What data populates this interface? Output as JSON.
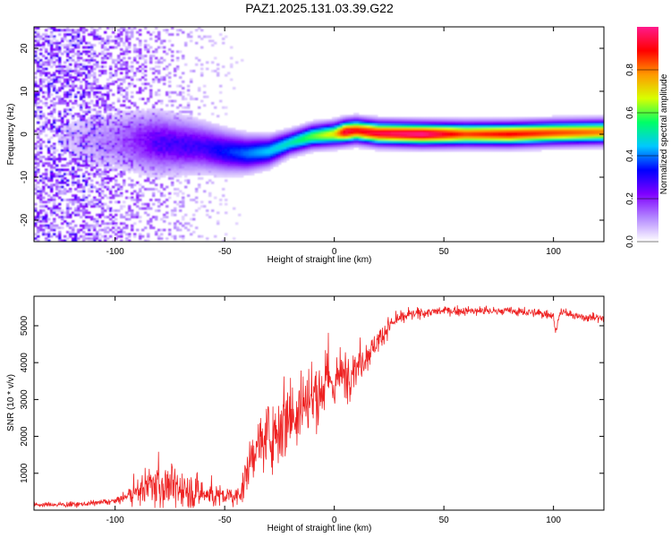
{
  "title": "PAZ1.2025.131.03.39.G22",
  "chart_data": [
    {
      "type": "heatmap",
      "title": "PAZ1.2025.131.03.39.G22",
      "xlabel": "Height of straight line (km)",
      "ylabel": "Frequency (Hz)",
      "xlim": [
        -137,
        123
      ],
      "ylim": [
        -25,
        25
      ],
      "xticks": [
        -100,
        -50,
        0,
        50,
        100
      ],
      "yticks": [
        -20,
        -10,
        0,
        10,
        20
      ],
      "colorbar": {
        "label": "Normalized spectral amplitude",
        "range": [
          0,
          1
        ],
        "ticks": [
          "0.0",
          "0.2",
          "0.4",
          "0.6",
          "0.8"
        ],
        "colors": [
          "#ffffff",
          "#b388ff",
          "#7f00ff",
          "#0000ff",
          "#00c8ff",
          "#00ff66",
          "#d8ff00",
          "#ff9900",
          "#ff0000",
          "#ff1a8c"
        ]
      },
      "ridge": {
        "x": [
          -137,
          -100,
          -80,
          -60,
          -50,
          -40,
          -30,
          -20,
          -10,
          0,
          5,
          10,
          20,
          40,
          60,
          80,
          100,
          123
        ],
        "freq": [
          -1.0,
          -1.5,
          -2.0,
          -3.0,
          -4.0,
          -4.5,
          -4.0,
          -2.0,
          -0.5,
          0.0,
          0.5,
          0.8,
          0.2,
          0.0,
          0.0,
          0.0,
          0.3,
          0.5
        ],
        "peak_amplitude": [
          0.0,
          0.15,
          0.3,
          0.3,
          0.35,
          0.4,
          0.45,
          0.5,
          0.6,
          0.7,
          0.95,
          0.9,
          0.95,
          1.0,
          0.85,
          0.9,
          0.85,
          0.8
        ]
      }
    },
    {
      "type": "line",
      "xlabel": "Height of straight line (km)",
      "ylabel": "SNR (10 * v/v)",
      "xlim": [
        -137,
        123
      ],
      "ylim": [
        0,
        5800
      ],
      "xticks": [
        -100,
        -50,
        0,
        50,
        100
      ],
      "yticks": [
        1000,
        2000,
        3000,
        4000,
        5000
      ],
      "color": "#ee2222",
      "series": [
        {
          "x": [
            -137,
            -120,
            -110,
            -100,
            -95,
            -90,
            -85,
            -80,
            -75,
            -70,
            -65,
            -60,
            -55,
            -50,
            -45,
            -42,
            -40,
            -38,
            -35,
            -30,
            -25,
            -20,
            -15,
            -10,
            -5,
            0,
            5,
            10,
            15,
            20,
            25,
            30,
            35,
            40,
            50,
            60,
            70,
            80,
            90,
            100,
            101,
            103,
            110,
            123
          ],
          "y": [
            150,
            150,
            180,
            250,
            350,
            500,
            650,
            700,
            650,
            550,
            500,
            450,
            400,
            380,
            350,
            600,
            900,
            1400,
            1800,
            2000,
            2300,
            2700,
            2900,
            3000,
            3300,
            3500,
            3700,
            3900,
            4200,
            4600,
            5000,
            5200,
            5300,
            5350,
            5400,
            5400,
            5400,
            5400,
            5350,
            5300,
            4800,
            5400,
            5250,
            5200
          ]
        }
      ],
      "noise": {
        "x": [
          -137,
          -100,
          -90,
          -80,
          -45,
          -40,
          -30,
          -20,
          -10,
          0,
          10,
          20,
          30,
          50,
          123
        ],
        "amplitude": [
          80,
          100,
          400,
          900,
          300,
          700,
          1100,
          1700,
          1500,
          1100,
          700,
          400,
          200,
          150,
          150
        ]
      }
    }
  ]
}
